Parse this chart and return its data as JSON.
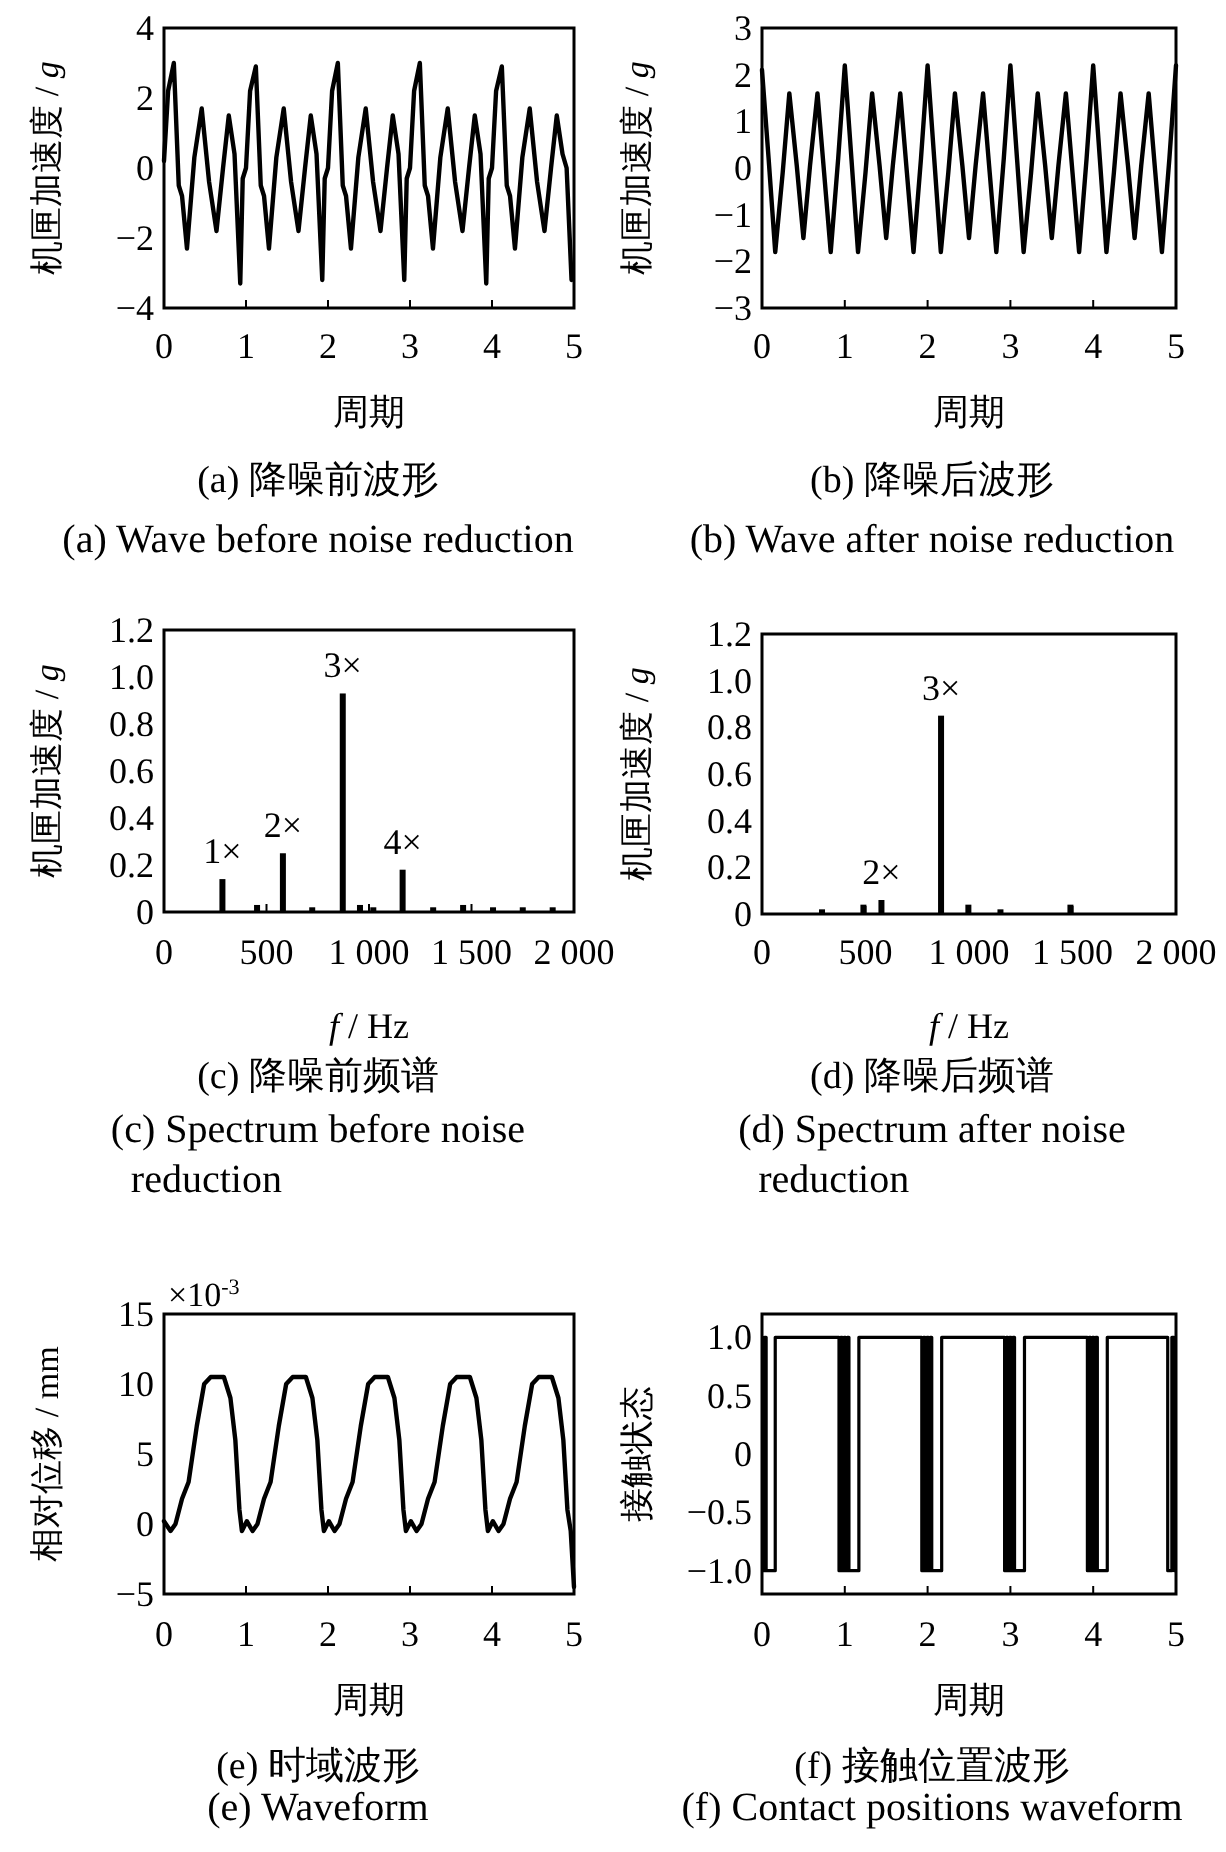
{
  "chart_data": [
    {
      "type": "line",
      "title": "(a) 降噪前波形",
      "subtitle": "(a) Wave before noise reduction",
      "xlabel": "周期",
      "ylabel": "机匣加速度 / *g*",
      "color": "#000000",
      "xlim": [
        0,
        5
      ],
      "ylim": [
        -4,
        4
      ],
      "xticks": [
        0,
        1,
        2,
        3,
        4,
        5
      ],
      "yticks": [
        -4,
        -2,
        0,
        2,
        4
      ],
      "x": [
        0,
        0.05,
        0.12,
        0.18,
        0.22,
        0.28,
        0.37,
        0.46,
        0.55,
        0.64,
        0.72,
        0.79,
        0.86,
        0.93,
        0.96,
        1.0,
        1.05,
        1.12,
        1.18,
        1.22,
        1.28,
        1.37,
        1.46,
        1.55,
        1.64,
        1.72,
        1.79,
        1.86,
        1.93,
        1.96,
        2.0,
        2.05,
        2.12,
        2.18,
        2.22,
        2.28,
        2.37,
        2.46,
        2.55,
        2.64,
        2.72,
        2.79,
        2.86,
        2.93,
        2.96,
        3.0,
        3.05,
        3.12,
        3.18,
        3.22,
        3.28,
        3.37,
        3.46,
        3.55,
        3.64,
        3.72,
        3.79,
        3.86,
        3.93,
        3.96,
        4.0,
        4.05,
        4.12,
        4.18,
        4.22,
        4.28,
        4.37,
        4.46,
        4.55,
        4.64,
        4.72,
        4.79,
        4.86,
        4.91,
        4.97
      ],
      "values": [
        0.2,
        2.2,
        3.0,
        -0.5,
        -0.8,
        -2.3,
        0.3,
        1.7,
        -0.4,
        -1.8,
        0.0,
        1.5,
        0.4,
        -3.3,
        -0.3,
        0.0,
        2.2,
        2.9,
        -0.5,
        -0.8,
        -2.3,
        0.3,
        1.7,
        -0.4,
        -1.8,
        0.0,
        1.5,
        0.4,
        -3.2,
        -0.3,
        0.0,
        2.2,
        3.0,
        -0.5,
        -0.8,
        -2.3,
        0.3,
        1.7,
        -0.4,
        -1.8,
        0.0,
        1.5,
        0.4,
        -3.2,
        -0.3,
        0.0,
        2.2,
        3.0,
        -0.5,
        -0.8,
        -2.3,
        0.3,
        1.7,
        -0.4,
        -1.8,
        0.0,
        1.5,
        0.4,
        -3.3,
        -0.3,
        0.0,
        2.2,
        2.9,
        -0.5,
        -0.8,
        -2.3,
        0.3,
        1.7,
        -0.4,
        -1.8,
        0.0,
        1.5,
        0.4,
        0.0,
        -3.2
      ]
    },
    {
      "type": "line",
      "title": "(b) 降噪后波形",
      "subtitle": "(b) Wave after noise reduction",
      "xlabel": "周期",
      "ylabel": "机匣加速度 / *g*",
      "color": "#000000",
      "xlim": [
        0,
        5
      ],
      "ylim": [
        -3,
        3
      ],
      "xticks": [
        0,
        1,
        2,
        3,
        4,
        5
      ],
      "yticks": [
        -3,
        -2,
        -1,
        0,
        1,
        2,
        3
      ],
      "x": [
        0,
        0.08,
        0.16,
        0.25,
        0.33,
        0.42,
        0.5,
        0.58,
        0.67,
        0.75,
        0.83,
        0.92,
        1.0,
        1.08,
        1.16,
        1.25,
        1.33,
        1.42,
        1.5,
        1.58,
        1.67,
        1.75,
        1.83,
        1.92,
        2.0,
        2.08,
        2.16,
        2.25,
        2.33,
        2.42,
        2.5,
        2.58,
        2.67,
        2.75,
        2.83,
        2.92,
        3.0,
        3.08,
        3.16,
        3.25,
        3.33,
        3.42,
        3.5,
        3.58,
        3.67,
        3.75,
        3.83,
        3.92,
        4.0,
        4.08,
        4.16,
        4.25,
        4.33,
        4.42,
        4.5,
        4.58,
        4.67,
        4.75,
        4.83,
        4.92,
        5.0
      ],
      "values": [
        2.1,
        0.2,
        -1.8,
        -0.1,
        1.6,
        0.05,
        -1.5,
        0.05,
        1.6,
        -0.1,
        -1.8,
        0.2,
        2.2,
        0.2,
        -1.8,
        -0.1,
        1.6,
        0.05,
        -1.5,
        0.05,
        1.6,
        -0.1,
        -1.8,
        0.2,
        2.2,
        0.2,
        -1.8,
        -0.1,
        1.6,
        0.05,
        -1.5,
        0.05,
        1.6,
        -0.1,
        -1.8,
        0.2,
        2.2,
        0.2,
        -1.8,
        -0.1,
        1.6,
        0.05,
        -1.5,
        0.05,
        1.6,
        -0.1,
        -1.8,
        0.2,
        2.2,
        0.2,
        -1.8,
        -0.1,
        1.6,
        0.05,
        -1.5,
        0.05,
        1.6,
        -0.1,
        -1.8,
        0.2,
        2.2
      ]
    },
    {
      "type": "bar",
      "title": "(c) 降噪前频谱",
      "subtitle": "(c) Spectrum before noise reduction",
      "xlabel": "*f* / Hz",
      "ylabel": "机匣加速度 / *g*",
      "color": "#000000",
      "xlim": [
        0,
        2000
      ],
      "ylim": [
        0,
        1.2
      ],
      "xticks": [
        0,
        500,
        {
          "value": 1000,
          "label": "1 000"
        },
        {
          "value": 1500,
          "label": "1 500"
        },
        {
          "value": 2000,
          "label": "2 000"
        }
      ],
      "yticks": [
        0,
        0.2,
        0.4,
        0.6,
        0.8,
        {
          "value": 1,
          "label": "1.0"
        },
        1.2
      ],
      "x": [
        285,
        454,
        580,
        723,
        872,
        956,
        1021,
        1164,
        1313,
        1459,
        1605,
        1750,
        1896
      ],
      "values": [
        0.14,
        0.03,
        0.25,
        0.02,
        0.93,
        0.03,
        0.02,
        0.18,
        0.02,
        0.03,
        0.02,
        0.02,
        0.02
      ],
      "annotations": [
        {
          "text": "1×",
          "x": 285,
          "y": 0.14
        },
        {
          "text": "2×",
          "x": 580,
          "y": 0.25
        },
        {
          "text": "3×",
          "x": 872,
          "y": 0.93
        },
        {
          "text": "4×",
          "x": 1164,
          "y": 0.18
        }
      ]
    },
    {
      "type": "bar",
      "title": "(d) 降噪后频谱",
      "subtitle": "(d) Spectrum after noise reduction",
      "xlabel": "*f* / Hz",
      "ylabel": "机匣加速度 / *g*",
      "color": "#000000",
      "xlim": [
        0,
        2000
      ],
      "ylim": [
        0,
        1.2
      ],
      "xticks": [
        0,
        500,
        {
          "value": 1000,
          "label": "1 000"
        },
        {
          "value": 1500,
          "label": "1 500"
        },
        {
          "value": 2000,
          "label": "2 000"
        }
      ],
      "yticks": [
        0,
        0.2,
        0.4,
        0.6,
        0.8,
        {
          "value": 1,
          "label": "1.0"
        },
        1.2
      ],
      "x": [
        290,
        490,
        577,
        865,
        997,
        1152,
        1490
      ],
      "values": [
        0.02,
        0.04,
        0.06,
        0.85,
        0.04,
        0.02,
        0.04
      ],
      "annotations": [
        {
          "text": "2×",
          "x": 577,
          "y": 0.06
        },
        {
          "text": "3×",
          "x": 865,
          "y": 0.85
        }
      ]
    },
    {
      "type": "line",
      "title": "(e) 时域波形",
      "subtitle": "(e) Waveform",
      "xlabel": "周期",
      "ylabel": "相对位移 / mm",
      "color": "#000000",
      "xlim": [
        0,
        5
      ],
      "ylim": [
        -5,
        15
      ],
      "xticks": [
        0,
        1,
        2,
        3,
        4,
        5
      ],
      "yticks": [
        -5,
        0,
        5,
        10,
        15
      ],
      "x": [
        0,
        0.08,
        0.14,
        0.22,
        0.3,
        0.4,
        0.49,
        0.57,
        0.73,
        0.81,
        0.87,
        0.92,
        0.95,
        1.01,
        1.08,
        1.14,
        1.22,
        1.3,
        1.4,
        1.49,
        1.57,
        1.73,
        1.81,
        1.87,
        1.92,
        1.95,
        2.01,
        2.08,
        2.14,
        2.22,
        2.3,
        2.4,
        2.49,
        2.57,
        2.73,
        2.81,
        2.87,
        2.92,
        2.95,
        3.01,
        3.08,
        3.14,
        3.22,
        3.3,
        3.4,
        3.49,
        3.57,
        3.73,
        3.81,
        3.87,
        3.92,
        3.95,
        4.01,
        4.08,
        4.14,
        4.22,
        4.3,
        4.4,
        4.49,
        4.57,
        4.73,
        4.81,
        4.87,
        4.92,
        4.96,
        5.0
      ],
      "values": [
        0.2,
        -0.5,
        0,
        1.8,
        3,
        7,
        10,
        10.5,
        10.5,
        9,
        6,
        1,
        -0.5,
        0.2,
        -0.5,
        0,
        1.8,
        3,
        7,
        10,
        10.5,
        10.5,
        9,
        6,
        1,
        -0.5,
        0.2,
        -0.5,
        0,
        1.8,
        3,
        7,
        10,
        10.5,
        10.5,
        9,
        6,
        1,
        -0.5,
        0.2,
        -0.5,
        0,
        1.8,
        3,
        7,
        10,
        10.5,
        10.5,
        9,
        6,
        1,
        -0.5,
        0.2,
        -0.5,
        0,
        1.8,
        3,
        7,
        10,
        10.5,
        10.5,
        9,
        6,
        1,
        -0.5,
        -4.5
      ],
      "annotations": [
        "×10$^{-3}$"
      ]
    },
    {
      "type": "step",
      "title": "(f) 接触位置波形",
      "subtitle": "(f) Contact positions waveform",
      "xlabel": "周期",
      "ylabel": "接触状态",
      "color": "#000000",
      "xlim": [
        0,
        5
      ],
      "ylim": [
        -1.2,
        1.2
      ],
      "xticks": [
        0,
        1,
        2,
        3,
        4,
        5
      ],
      "yticks": [
        {
          "value": -1,
          "label": "−1.0"
        },
        {
          "value": -0.5,
          "label": "−0.5"
        },
        0,
        0.5,
        {
          "value": 1,
          "label": "1.0"
        }
      ],
      "x": [
        0,
        0.01,
        0.03,
        0.05,
        0.16,
        0.93,
        0.95,
        0.97,
        0.99,
        1.01,
        1.03,
        1.05,
        1.17,
        1.93,
        1.95,
        1.97,
        1.99,
        2.01,
        2.03,
        2.05,
        2.17,
        2.93,
        2.95,
        2.97,
        2.99,
        3.01,
        3.03,
        3.05,
        3.17,
        3.93,
        3.95,
        3.97,
        3.99,
        4.01,
        4.03,
        4.05,
        4.17,
        4.9,
        4.95,
        4.98
      ],
      "values": [
        1,
        -1,
        1,
        -1,
        1,
        -1,
        1,
        -1,
        1,
        -1,
        1,
        -1,
        1,
        -1,
        1,
        -1,
        1,
        -1,
        1,
        -1,
        1,
        -1,
        1,
        -1,
        1,
        -1,
        1,
        -1,
        1,
        -1,
        1,
        -1,
        1,
        -1,
        1,
        -1,
        1,
        -1,
        1,
        -1
      ]
    }
  ]
}
